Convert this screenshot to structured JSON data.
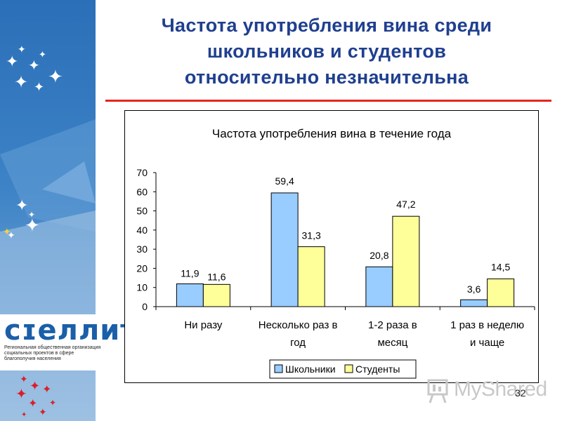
{
  "slide": {
    "title_lines": [
      "Частота употребления вина среди",
      "школьников и студентов",
      "относительно незначительна"
    ],
    "page_number": "32",
    "accent_color": "#e3261f",
    "title_color": "#1f3f8f"
  },
  "logo": {
    "word": "сɪеллит",
    "subtitle": "Региональная общественная организация социальных проектов в сфере благополучия населения"
  },
  "watermark": {
    "text": "MyShared"
  },
  "chart_data": {
    "type": "bar",
    "title": "Частота употребления вина в течение года",
    "categories": [
      "Ни разу",
      "Несколько раз в год",
      "1-2 раза в месяц",
      "1 раз в неделю и чаще"
    ],
    "category_lines": [
      [
        "Ни разу"
      ],
      [
        "Несколько раз в",
        "год"
      ],
      [
        "1-2 раза в",
        "месяц"
      ],
      [
        "1 раз в неделю",
        "и чаще"
      ]
    ],
    "series": [
      {
        "name": "Школьники",
        "values": [
          11.9,
          59.4,
          20.8,
          3.6
        ],
        "labels": [
          "11,9",
          "59,4",
          "20,8",
          "3,6"
        ],
        "color": "#99ccff"
      },
      {
        "name": "Студенты",
        "values": [
          11.6,
          31.3,
          47.2,
          14.5
        ],
        "labels": [
          "11,6",
          "31,3",
          "47,2",
          "14,5"
        ],
        "color": "#ffff99"
      }
    ],
    "ylim": [
      0,
      70
    ],
    "yticks": [
      "0",
      "10",
      "20",
      "30",
      "40",
      "50",
      "60",
      "70"
    ],
    "xlabel": "",
    "ylabel": "",
    "grid": false,
    "legend_position": "bottom"
  }
}
